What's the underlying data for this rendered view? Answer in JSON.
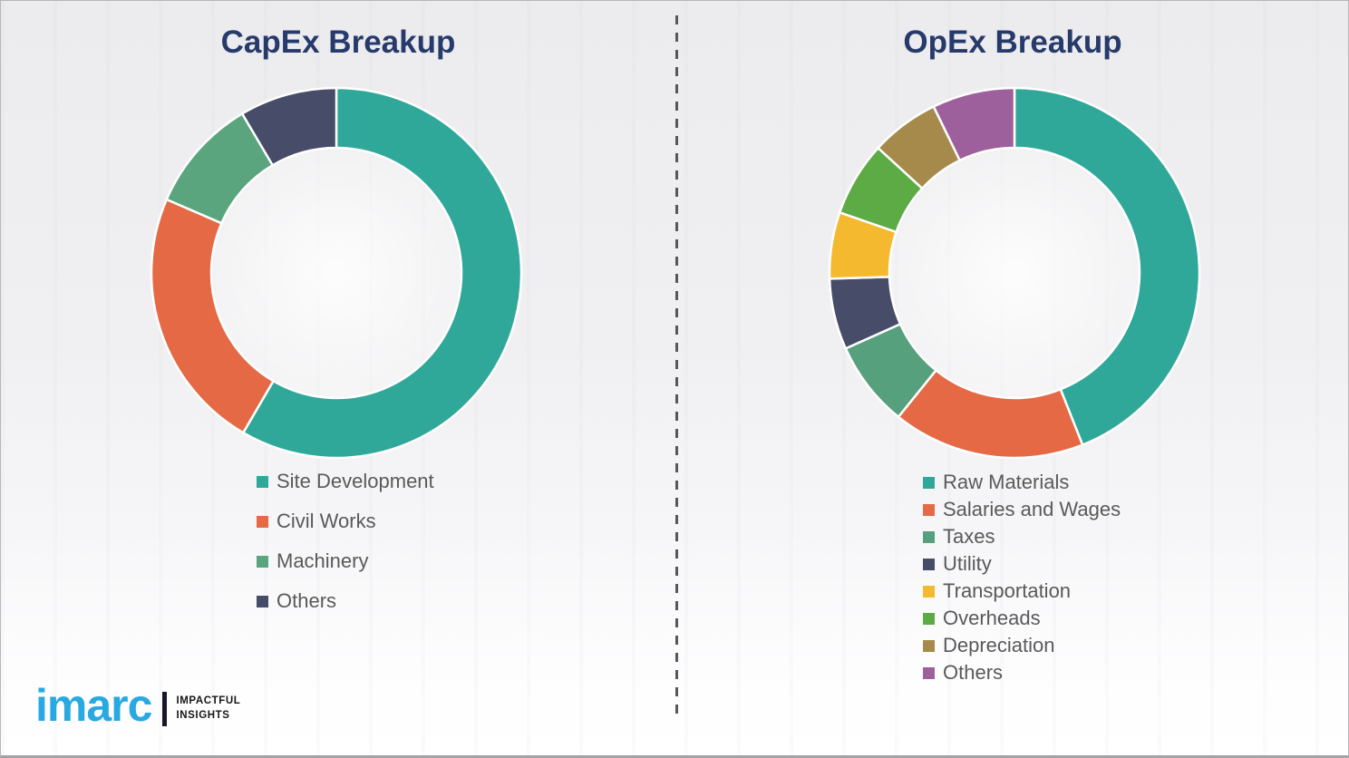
{
  "theme": {
    "title_color": "#263A6B",
    "legend_text_color": "#595959",
    "divider_color": "#57575A",
    "segment_gap_color": "#FFFFFF"
  },
  "chart_data": [
    {
      "type": "pie",
      "subtype": "donut",
      "title": "CapEx Breakup",
      "units": "percent (estimated from arc angles)",
      "start_angle_deg": 0,
      "direction": "clockwise",
      "legend_position": "below-left",
      "segments": [
        {
          "label": "Site Development",
          "value": 58.4,
          "color": "#2FA89A"
        },
        {
          "label": "Civil Works",
          "value": 23.1,
          "color": "#E56944"
        },
        {
          "label": "Machinery",
          "value": 10.0,
          "color": "#5BA57E"
        },
        {
          "label": "Others",
          "value": 8.5,
          "color": "#474D68"
        }
      ]
    },
    {
      "type": "pie",
      "subtype": "donut",
      "title": "OpEx Breakup",
      "units": "percent (estimated from arc angles)",
      "start_angle_deg": 0,
      "direction": "clockwise",
      "legend_position": "below-left",
      "segments": [
        {
          "label": "Raw Materials",
          "value": 44.0,
          "color": "#2FA89A"
        },
        {
          "label": "Salaries and Wages",
          "value": 16.8,
          "color": "#E56944"
        },
        {
          "label": "Taxes",
          "value": 7.5,
          "color": "#57A07D"
        },
        {
          "label": "Utility",
          "value": 6.2,
          "color": "#474D68"
        },
        {
          "label": "Transportation",
          "value": 5.8,
          "color": "#F5B92F"
        },
        {
          "label": "Overheads",
          "value": 6.5,
          "color": "#5CAB45"
        },
        {
          "label": "Depreciation",
          "value": 6.0,
          "color": "#A58A4B"
        },
        {
          "label": "Others",
          "value": 7.2,
          "color": "#9E5F9D"
        }
      ]
    }
  ],
  "logo": {
    "brand": "imarc",
    "tagline_line1": "IMPACTFUL",
    "tagline_line2": "INSIGHTS",
    "brand_color": "#29A9E1"
  }
}
